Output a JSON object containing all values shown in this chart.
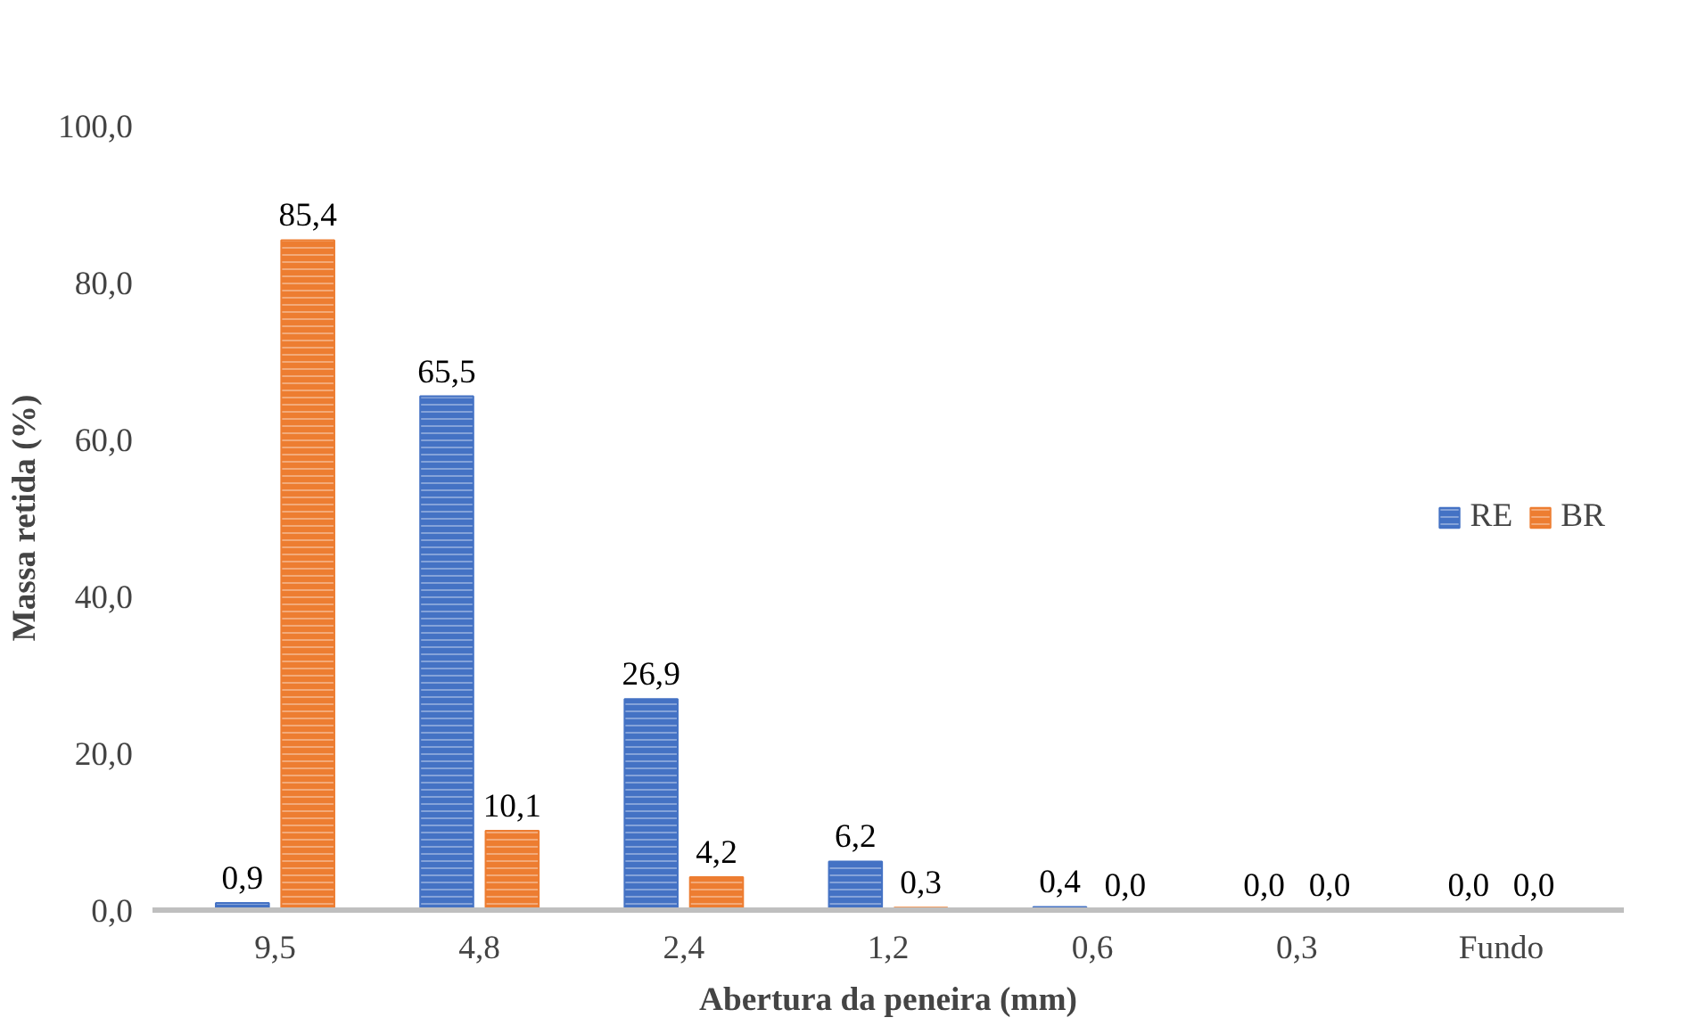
{
  "chart_data": {
    "type": "bar",
    "xlabel": "Abertura da peneira (mm)",
    "ylabel": "Massa retida (%)",
    "categories": [
      "9,5",
      "4,8",
      "2,4",
      "1,2",
      "0,6",
      "0,3",
      "Fundo"
    ],
    "series": [
      {
        "name": "RE",
        "color": "#4472c4",
        "values": [
          0.9,
          65.5,
          26.9,
          6.2,
          0.4,
          0.0,
          0.0
        ],
        "value_labels": [
          "0,9",
          "65,5",
          "26,9",
          "6,2",
          "0,4",
          "0,0",
          "0,0"
        ]
      },
      {
        "name": "BR",
        "color": "#ed7d31",
        "values": [
          85.4,
          10.1,
          4.2,
          0.3,
          0.0,
          0.0,
          0.0
        ],
        "value_labels": [
          "85,4",
          "10,1",
          "4,2",
          "0,3",
          "0,0",
          "0,0",
          "0,0"
        ]
      }
    ],
    "ylim": [
      0,
      100
    ],
    "yticks": [
      {
        "value": 0,
        "label": "0,0"
      },
      {
        "value": 20,
        "label": "20,0"
      },
      {
        "value": 40,
        "label": "40,0"
      },
      {
        "value": 60,
        "label": "60,0"
      },
      {
        "value": 80,
        "label": "80,0"
      },
      {
        "value": 100,
        "label": "100,0"
      }
    ],
    "grid": false,
    "legend": "right"
  }
}
